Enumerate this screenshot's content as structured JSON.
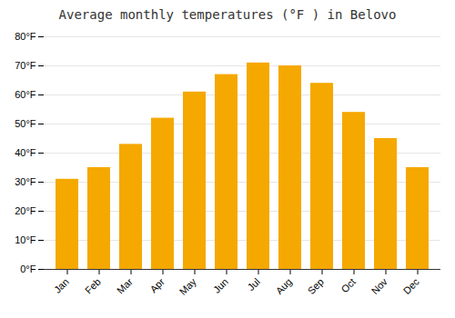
{
  "chart_data": {
    "type": "bar",
    "title": "Average monthly temperatures (°F ) in Belovo",
    "categories": [
      "Jan",
      "Feb",
      "Mar",
      "Apr",
      "May",
      "Jun",
      "Jul",
      "Aug",
      "Sep",
      "Oct",
      "Nov",
      "Dec"
    ],
    "values": [
      31,
      35,
      43,
      52,
      61,
      67,
      71,
      70,
      64,
      54,
      45,
      35
    ],
    "color": "#F5A800",
    "ylim": [
      0,
      80
    ],
    "yticks": [
      {
        "value": 0,
        "label": "0°F"
      },
      {
        "value": 10,
        "label": "10°F"
      },
      {
        "value": 20,
        "label": "20°F"
      },
      {
        "value": 30,
        "label": "30°F"
      },
      {
        "value": 40,
        "label": "40°F"
      },
      {
        "value": 50,
        "label": "50°F"
      },
      {
        "value": 60,
        "label": "60°F"
      },
      {
        "value": 70,
        "label": "70°F"
      },
      {
        "value": 80,
        "label": "80°F"
      }
    ],
    "grid": true
  }
}
